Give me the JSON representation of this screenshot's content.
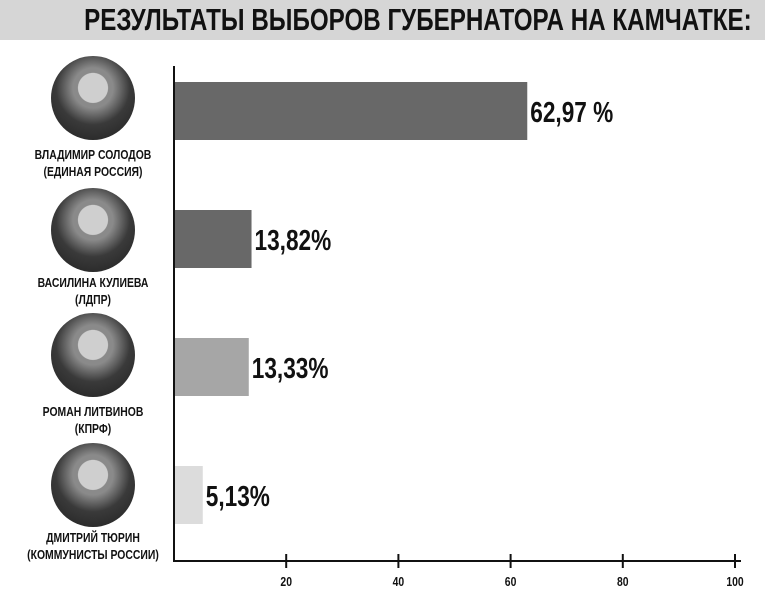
{
  "title": "РЕЗУЛЬТАТЫ ВЫБОРОВ ГУБЕРНАТОРА НА КАМЧАТКЕ:",
  "candidates": [
    {
      "name": "ВЛАДИМИР СОЛОДОВ",
      "party": "(ЕДИНАЯ РОССИЯ)"
    },
    {
      "name": "ВАСИЛИНА КУЛИЕВА",
      "party": "(ЛДПР)"
    },
    {
      "name": "РОМАН ЛИТВИНОВ",
      "party": "(КПРФ)"
    },
    {
      "name": "ДМИТРИЙ ТЮРИН",
      "party": "(КОММУНИСТЫ РОССИИ)"
    }
  ],
  "chart_data": {
    "type": "bar",
    "orientation": "horizontal",
    "title": "РЕЗУЛЬТАТЫ ВЫБОРОВ ГУБЕРНАТОРА НА КАМЧАТКЕ:",
    "categories": [
      "ВЛАДИМИР СОЛОДОВ (ЕДИНАЯ РОССИЯ)",
      "ВАСИЛИНА КУЛИЕВА (ЛДПР)",
      "РОМАН ЛИТВИНОВ (КПРФ)",
      "ДМИТРИЙ ТЮРИН (КОММУНИСТЫ РОССИИ)"
    ],
    "values": [
      62.97,
      13.82,
      13.33,
      5.13
    ],
    "data_labels": [
      "62,97 %",
      "13,82%",
      "13,33%",
      "5,13%"
    ],
    "bar_colors": [
      "#686868",
      "#686868",
      "#a6a6a6",
      "#dcdcdc"
    ],
    "xlim": [
      0,
      100
    ],
    "xticks": [
      "20",
      "40",
      "60",
      "80",
      "100"
    ],
    "xtick_values": [
      20,
      40,
      60,
      80,
      100
    ],
    "grid": false,
    "legend": "none"
  }
}
